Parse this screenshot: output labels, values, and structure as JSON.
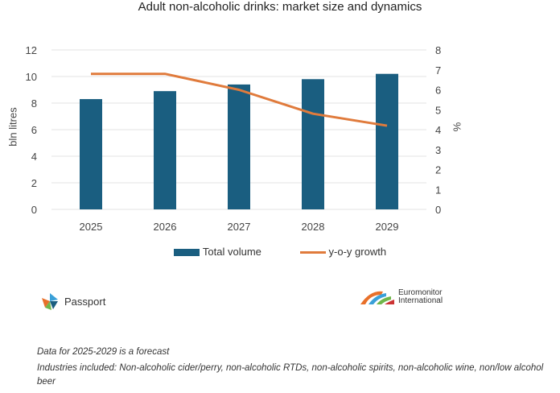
{
  "chart_data": {
    "type": "bar+line",
    "title": "Adult non-alcoholic drinks: market size and dynamics",
    "categories": [
      "2025",
      "2026",
      "2027",
      "2028",
      "2029"
    ],
    "series": [
      {
        "name": "Total volume",
        "type": "bar",
        "axis": "left",
        "color": "#1a5e80",
        "values": [
          8.3,
          8.9,
          9.4,
          9.8,
          10.2
        ]
      },
      {
        "name": "y-o-y growth",
        "type": "line",
        "axis": "right",
        "color": "#e07b3c",
        "values": [
          6.8,
          6.8,
          6.0,
          4.8,
          4.2
        ]
      }
    ],
    "ylabel": "bln litres",
    "ylim": [
      0,
      12
    ],
    "yticks": [
      "0",
      "2",
      "4",
      "6",
      "8",
      "10",
      "12"
    ],
    "y2label": "%",
    "y2lim": [
      0,
      8
    ],
    "y2ticks": [
      "0",
      "1",
      "2",
      "3",
      "4",
      "5",
      "6",
      "7",
      "8"
    ],
    "grid": true,
    "legend": "bottom"
  },
  "logos": {
    "passport": "Passport",
    "euromonitor": "Euromonitor International"
  },
  "footnotes": {
    "forecast": "Data for 2025-2029 is a forecast",
    "industries": "Industries included: Non-alcoholic cider/perry, non-alcoholic RTDs, non-alcoholic spirits, non-alcoholic wine, non/low alcohol beer"
  }
}
